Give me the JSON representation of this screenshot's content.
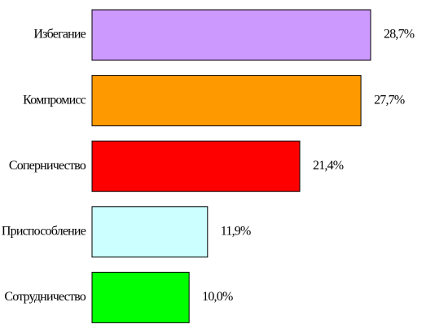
{
  "chart_data": {
    "type": "bar",
    "orientation": "horizontal",
    "categories": [
      "Избегание",
      "Компромисс",
      "Соперничество",
      "Приспособление",
      "Сотрудничество"
    ],
    "values": [
      28.7,
      27.7,
      21.4,
      11.9,
      10.0
    ],
    "value_labels": [
      "28,7%",
      "27,7%",
      "21,4%",
      "11,9%",
      "10,0%"
    ],
    "colors": [
      "#cc99ff",
      "#ff9900",
      "#ff0000",
      "#ccffff",
      "#00ff00"
    ]
  }
}
